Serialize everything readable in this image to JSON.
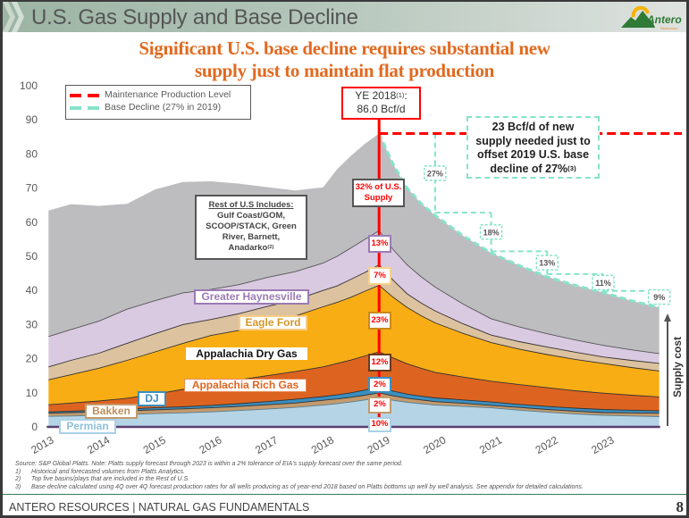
{
  "header": {
    "title": "U.S. Gas Supply and Base Decline",
    "logo": {
      "name": "Antero",
      "sub": "Resources"
    }
  },
  "subtitle": {
    "line1": "Significant U.S. base decline requires substantial new",
    "line2": "supply just to maintain flat production",
    "color": "#e2691f"
  },
  "legend": {
    "items": [
      {
        "label": "Maintenance Production Level",
        "color": "#ff0000"
      },
      {
        "label": "Base Decline (27% in 2019)",
        "color": "#86e3c9"
      }
    ]
  },
  "callouts": {
    "ye": {
      "line1": "YE 2018",
      "sup": "(1)",
      "suffix": ":",
      "line2": "86.0 Bcf/d"
    },
    "new_supply": {
      "lines": [
        "23 Bcf/d of new",
        "supply needed just to",
        "offset 2019 U.S. base",
        "decline of 27%"
      ],
      "sup": "(3)"
    },
    "rest_box": {
      "heading": "Rest of U.S Includes:",
      "lines": [
        "Gulf Coast/GOM,",
        "SCOOP/STACK, Green",
        "River, Barnett,",
        "Anadarko"
      ],
      "sup": "(2)"
    },
    "supply_cost": "Supply cost"
  },
  "chart_data": {
    "type": "area",
    "stacked": true,
    "title": "",
    "xlabel": "",
    "ylabel": "",
    "units": "Bcf/d",
    "xlim": [
      2013,
      2024
    ],
    "ylim": [
      0,
      100
    ],
    "grid": false,
    "legend_position": "top-left",
    "x_ticks": [
      2013,
      2014,
      2015,
      2016,
      2017,
      2018,
      2019,
      2020,
      2021,
      2022,
      2023
    ],
    "y_ticks": [
      0,
      10,
      20,
      30,
      40,
      50,
      60,
      70,
      80,
      90,
      100
    ],
    "x": [
      2013.1,
      2013.5,
      2014,
      2014.5,
      2015,
      2015.5,
      2016,
      2016.5,
      2017,
      2017.5,
      2018,
      2018.25,
      2018.5,
      2018.75,
      2019,
      2019.25,
      2019.5,
      2019.75,
      2020,
      2020.5,
      2021,
      2021.5,
      2022,
      2022.5,
      2023,
      2023.5,
      2024
    ],
    "series": [
      {
        "key": "permian",
        "name": "Permian",
        "color": "#b5d5e6",
        "label_color": "#8fbfdc",
        "share_ye2018": "10%",
        "outline": "#5a7f93",
        "values": [
          3.1,
          3.2,
          3.4,
          3.6,
          3.9,
          4.1,
          4.4,
          4.8,
          5.2,
          5.7,
          6.4,
          6.8,
          7.3,
          7.9,
          8.6,
          7.8,
          7.2,
          6.8,
          6.4,
          6.0,
          5.6,
          4.9,
          4.3,
          3.8,
          3.4,
          3.2,
          3.0
        ]
      },
      {
        "key": "bakken",
        "name": "Bakken",
        "color": "#c49a6c",
        "label_color": "#c08f5c",
        "share_ye2018": "2%",
        "outline": "#333333",
        "values": [
          0.9,
          1.0,
          1.0,
          1.1,
          1.1,
          1.2,
          1.2,
          1.2,
          1.3,
          1.3,
          1.4,
          1.4,
          1.4,
          1.4,
          1.4,
          1.3,
          1.2,
          1.1,
          1.0,
          0.9,
          0.7,
          0.8,
          0.8,
          0.8,
          0.8,
          0.9,
          1.0
        ]
      },
      {
        "key": "dj",
        "name": "DJ",
        "color": "#3a8fc0",
        "label_color": "#3a8fc0",
        "share_ye2018": "2%",
        "outline": "#333333",
        "values": [
          0.4,
          0.4,
          0.5,
          0.5,
          0.6,
          0.6,
          0.7,
          0.8,
          0.9,
          1.1,
          1.1,
          1.2,
          1.3,
          1.5,
          1.7,
          1.4,
          1.2,
          1.1,
          1.1,
          1.0,
          1.0,
          0.9,
          0.9,
          0.9,
          0.9,
          0.8,
          0.7
        ]
      },
      {
        "key": "appalachia-rich",
        "name": "Appalachia Rich Gas",
        "color": "#dd6420",
        "label_color": "#e0641f",
        "share_ye2018": "12%",
        "outline": "#333333",
        "values": [
          2.1,
          2.4,
          2.7,
          3.2,
          4.0,
          5.1,
          6.2,
          7.0,
          7.6,
          8.1,
          8.7,
          9.2,
          9.6,
          10.0,
          10.3,
          9.7,
          8.9,
          8.2,
          7.5,
          6.7,
          6.1,
          5.8,
          5.5,
          5.1,
          4.8,
          4.4,
          4.1
        ]
      },
      {
        "key": "appalachia-dry",
        "name": "Appalachia Dry Gas",
        "color": "#f9ad14",
        "label_color": "#111111",
        "share_ye2018": "23%",
        "outline": "#333333",
        "values": [
          7.3,
          8.3,
          9.6,
          11.1,
          12.4,
          13.5,
          14.3,
          14.5,
          15.5,
          16.3,
          17.6,
          17.9,
          18.4,
          19.0,
          19.5,
          17.8,
          16.5,
          15.4,
          14.5,
          12.8,
          11.3,
          10.4,
          9.7,
          9.2,
          8.7,
          8.1,
          7.6
        ]
      },
      {
        "key": "eagle-ford",
        "name": "Eagle Ford",
        "color": "#dcc29f",
        "label_color": "#d4962b",
        "share_ye2018": "7%",
        "outline": "#333333",
        "values": [
          3.8,
          4.2,
          4.4,
          5.0,
          5.3,
          5.5,
          4.7,
          4.9,
          4.8,
          4.7,
          4.8,
          4.8,
          5.3,
          5.5,
          6.0,
          5.0,
          4.0,
          3.7,
          3.5,
          2.8,
          2.2,
          2.2,
          2.2,
          2.1,
          1.9,
          2.1,
          2.2
        ]
      },
      {
        "key": "haynesville",
        "name": "Greater Haynesville",
        "color": "#d9c9e1",
        "label_color": "#9b7bb3",
        "share_ye2018": "13%",
        "outline": "#555555",
        "values": [
          8.9,
          9.0,
          9.4,
          10.0,
          9.7,
          9.3,
          8.8,
          8.5,
          8.5,
          8.3,
          8.0,
          8.7,
          9.2,
          9.7,
          10.0,
          9.0,
          8.5,
          7.7,
          7.0,
          5.8,
          4.8,
          4.3,
          3.9,
          3.6,
          3.4,
          3.1,
          2.9
        ]
      },
      {
        "key": "rest-of-us",
        "name": "Rest of U.S.",
        "color": "#bdbdbf",
        "label_color": "#555555",
        "share_ye2018": "32%",
        "share_label": [
          "32% of U.S.",
          "Supply"
        ],
        "outline": "",
        "values": [
          36.9,
          36.8,
          33.8,
          30.9,
          32.6,
          32.5,
          31.7,
          29.6,
          26.5,
          23.8,
          22.2,
          25.5,
          27.0,
          28.0,
          28.5,
          25.0,
          22.5,
          21.5,
          21.0,
          20.0,
          19.3,
          18.0,
          16.7,
          16.0,
          15.5,
          14.4,
          13.5
        ]
      }
    ],
    "ye2018_marker": 2019.0,
    "ye2018_total": 86.0,
    "maintenance_level": 86.0,
    "maintenance_color": "#ff0000",
    "base_decline": {
      "color": "#86e3c9",
      "start_level": 86.0,
      "years": [
        2019,
        2020,
        2021,
        2022,
        2023
      ],
      "pct": [
        27,
        18,
        13,
        11,
        9
      ],
      "labels": [
        "27%",
        "18%",
        "13%",
        "11%",
        "9%"
      ]
    }
  },
  "footnotes": {
    "source": "Source: S&P Global Platts. Note:  Platts supply forecast through 2023 is within a 2% tolerance of EIA's supply forecast over the same period.",
    "items": [
      {
        "num": "1)",
        "text": "Historical and forecasted volumes from Platts Analytics."
      },
      {
        "num": "2)",
        "text": "Top five basins/plays that are included in the Rest of U.S."
      },
      {
        "num": "3)",
        "text": "Base decline calculated using 4Q over 4Q forecast production rates for all wells producing as of year-end 2018 based on Platts bottoms up well by well analysis.  See appendix for detailed calculations."
      }
    ]
  },
  "footer": {
    "text": "ANTERO RESOURCES | NATURAL GAS FUNDAMENTALS",
    "page": "8"
  }
}
